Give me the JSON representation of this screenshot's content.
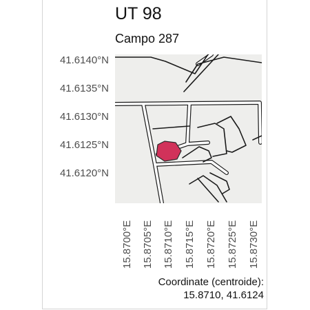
{
  "title": "UT 98",
  "subtitle": "Campo 287",
  "latitude_labels": [
    "41.6140°N",
    "41.6135°N",
    "41.6130°N",
    "41.6125°N",
    "41.6120°N"
  ],
  "longitude_labels": [
    "15.8700°E",
    "15.8705°E",
    "15.8710°E",
    "15.8715°E",
    "15.8720°E",
    "15.8725°E",
    "15.8730°E"
  ],
  "coordinate_caption": {
    "line1": "Coordinate (centroide):",
    "line2": "15.8710, 41.6124"
  },
  "colors": {
    "map_background": "#eeeeec",
    "road_fill": "#ffffff",
    "road_outline": "#1a1a1a",
    "highlight_parcel": "#d1325a",
    "axis_text": "#4d4d4d"
  }
}
